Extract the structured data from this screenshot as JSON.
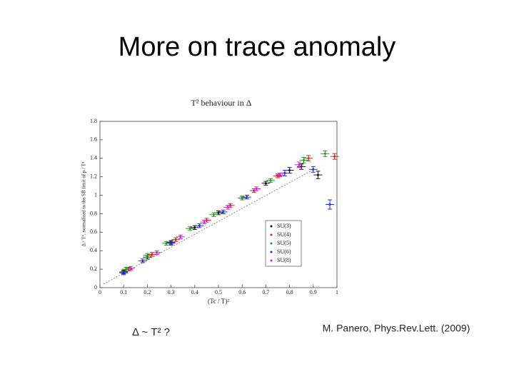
{
  "title": "More on trace anomaly",
  "caption_left": "Δ ~ T² ?",
  "caption_right": "M. Panero, Phys.Rev.Lett. (2009)",
  "chart_data": {
    "type": "scatter",
    "title": "T² behaviour in Δ",
    "x_label": "(Tc / T)²",
    "y_label": "Δ / T⁴, normalized to the SB limit of p / T⁴",
    "xlim": [
      0,
      1
    ],
    "xticks": [
      0,
      0.1,
      0.2,
      0.3,
      0.4,
      0.5,
      0.6,
      0.7,
      0.8,
      0.9,
      1
    ],
    "ylim": [
      0,
      1.8
    ],
    "yticks": [
      0,
      0.2,
      0.4,
      0.6,
      0.8,
      1,
      1.2,
      1.4,
      1.6,
      1.8
    ],
    "legend": "lower right",
    "series": [
      {
        "name": "SU(3)",
        "color": "#111111",
        "x": [
          0.1,
          0.2,
          0.3,
          0.4,
          0.5,
          0.6,
          0.7,
          0.8,
          0.85,
          0.92
        ],
        "values": [
          0.17,
          0.33,
          0.49,
          0.65,
          0.81,
          0.97,
          1.13,
          1.27,
          1.31,
          1.22
        ],
        "errors": [
          0.02,
          0.02,
          0.02,
          0.02,
          0.02,
          0.02,
          0.02,
          0.03,
          0.03,
          0.04
        ]
      },
      {
        "name": "SU(4)",
        "color": "#d62020",
        "x": [
          0.12,
          0.22,
          0.32,
          0.45,
          0.55,
          0.65,
          0.75,
          0.88,
          0.99
        ],
        "values": [
          0.2,
          0.36,
          0.52,
          0.73,
          0.89,
          1.05,
          1.21,
          1.4,
          1.42
        ],
        "errors": [
          0.02,
          0.02,
          0.02,
          0.02,
          0.02,
          0.02,
          0.02,
          0.03,
          0.03
        ]
      },
      {
        "name": "SU(5)",
        "color": "#1e9a1e",
        "x": [
          0.11,
          0.2,
          0.28,
          0.38,
          0.48,
          0.6,
          0.72,
          0.86,
          0.95
        ],
        "values": [
          0.2,
          0.35,
          0.48,
          0.64,
          0.79,
          0.97,
          1.16,
          1.38,
          1.45
        ],
        "errors": [
          0.02,
          0.02,
          0.02,
          0.02,
          0.02,
          0.02,
          0.02,
          0.03,
          0.03
        ]
      },
      {
        "name": "SU(6)",
        "color": "#2030c8",
        "x": [
          0.1,
          0.18,
          0.3,
          0.42,
          0.52,
          0.62,
          0.78,
          0.9,
          0.97
        ],
        "values": [
          0.16,
          0.29,
          0.48,
          0.67,
          0.82,
          0.98,
          1.24,
          1.28,
          0.9
        ],
        "errors": [
          0.02,
          0.02,
          0.02,
          0.02,
          0.02,
          0.02,
          0.03,
          0.03,
          0.05
        ]
      },
      {
        "name": "SU(8)",
        "color": "#d020c0",
        "x": [
          0.13,
          0.24,
          0.34,
          0.44,
          0.54,
          0.66,
          0.76,
          0.84
        ],
        "values": [
          0.21,
          0.38,
          0.55,
          0.71,
          0.87,
          1.07,
          1.22,
          1.33
        ],
        "errors": [
          0.02,
          0.02,
          0.02,
          0.02,
          0.02,
          0.02,
          0.02,
          0.03
        ]
      }
    ]
  }
}
